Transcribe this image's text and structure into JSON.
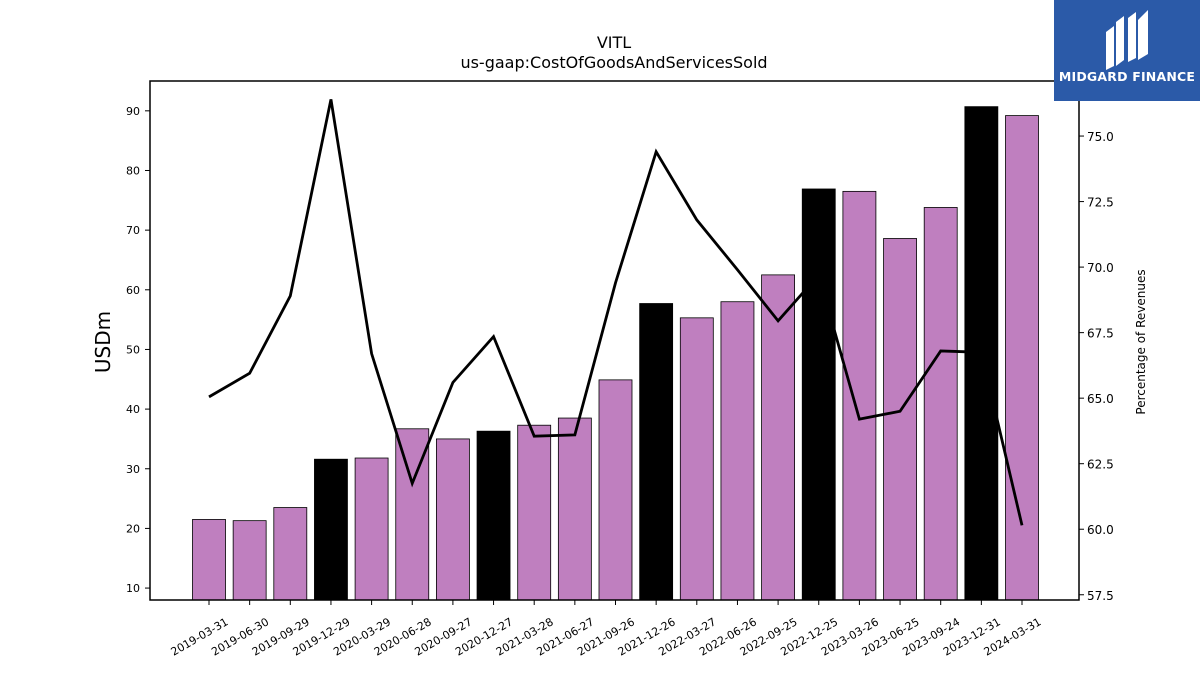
{
  "chart_data": {
    "type": "bar",
    "title": "VITL",
    "subtitle": "us-gaap:CostOfGoodsAndServicesSold",
    "ylabel": "USDm",
    "y2label": "Percentage of Revenues",
    "ylim": [
      8,
      95
    ],
    "y2lim": [
      57.3,
      77.1
    ],
    "yticks": [
      10,
      20,
      30,
      40,
      50,
      60,
      70,
      80,
      90
    ],
    "y2ticks": [
      "57.5",
      "60.0",
      "62.5",
      "65.0",
      "67.5",
      "70.0",
      "72.5",
      "75.0"
    ],
    "categories": [
      "2019-03-31",
      "2019-06-30",
      "2019-09-29",
      "2019-12-29",
      "2020-03-29",
      "2020-06-28",
      "2020-09-27",
      "2020-12-27",
      "2021-03-28",
      "2021-06-27",
      "2021-09-26",
      "2021-12-26",
      "2022-03-27",
      "2022-06-26",
      "2022-09-25",
      "2022-12-25",
      "2023-03-26",
      "2023-06-25",
      "2023-09-24",
      "2023-12-31",
      "2024-03-31"
    ],
    "series": [
      {
        "type": "bar",
        "values": [
          21.5,
          21.3,
          23.5,
          31.6,
          31.8,
          36.7,
          35.0,
          36.3,
          37.3,
          38.5,
          44.9,
          57.7,
          55.3,
          58.0,
          62.5,
          76.9,
          76.5,
          68.6,
          73.8,
          90.7,
          89.2
        ],
        "highlight": [
          false,
          false,
          false,
          true,
          false,
          false,
          false,
          true,
          false,
          false,
          false,
          true,
          false,
          false,
          false,
          true,
          false,
          false,
          false,
          true,
          false
        ]
      },
      {
        "type": "line",
        "axis": "right",
        "values": [
          65.05,
          65.95,
          68.9,
          76.4,
          66.7,
          61.75,
          65.6,
          67.35,
          63.55,
          63.6,
          69.4,
          74.4,
          71.8,
          69.9,
          67.95,
          69.7,
          64.2,
          64.5,
          66.8,
          66.75,
          60.15
        ]
      }
    ],
    "colors": {
      "bar": "#bf7fbf",
      "highlight": "#000000",
      "line": "#000000"
    },
    "grid": false
  },
  "logo": {
    "text": "MIDGARD FINANCE",
    "bg": "#2b5aa8"
  }
}
